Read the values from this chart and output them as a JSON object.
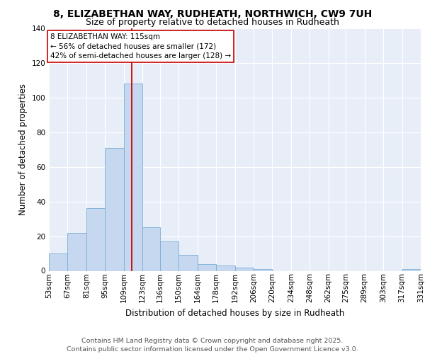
{
  "title_line1": "8, ELIZABETHAN WAY, RUDHEATH, NORTHWICH, CW9 7UH",
  "title_line2": "Size of property relative to detached houses in Rudheath",
  "xlabel": "Distribution of detached houses by size in Rudheath",
  "ylabel": "Number of detached properties",
  "footnote1": "Contains HM Land Registry data © Crown copyright and database right 2025.",
  "footnote2": "Contains public sector information licensed under the Open Government Licence v3.0.",
  "bin_edges": [
    53,
    67,
    81,
    95,
    109,
    123,
    136,
    150,
    164,
    178,
    192,
    206,
    220,
    234,
    248,
    262,
    275,
    289,
    303,
    317,
    331
  ],
  "counts": [
    10,
    22,
    36,
    71,
    108,
    25,
    17,
    9,
    4,
    3,
    2,
    1,
    0,
    0,
    0,
    0,
    0,
    0,
    0,
    1
  ],
  "bar_color": "#c5d8f0",
  "bar_edge_color": "#7badd4",
  "vline_x": 115,
  "vline_color": "#cc0000",
  "annotation_text": "8 ELIZABETHAN WAY: 115sqm\n← 56% of detached houses are smaller (172)\n42% of semi-detached houses are larger (128) →",
  "ylim": [
    0,
    140
  ],
  "yticks": [
    0,
    20,
    40,
    60,
    80,
    100,
    120,
    140
  ],
  "background_color": "#e8eef8",
  "grid_color": "#ffffff",
  "title_fontsize": 10,
  "subtitle_fontsize": 9,
  "axis_label_fontsize": 8.5,
  "tick_fontsize": 7.5,
  "annotation_fontsize": 7.5,
  "footnote_fontsize": 6.8
}
